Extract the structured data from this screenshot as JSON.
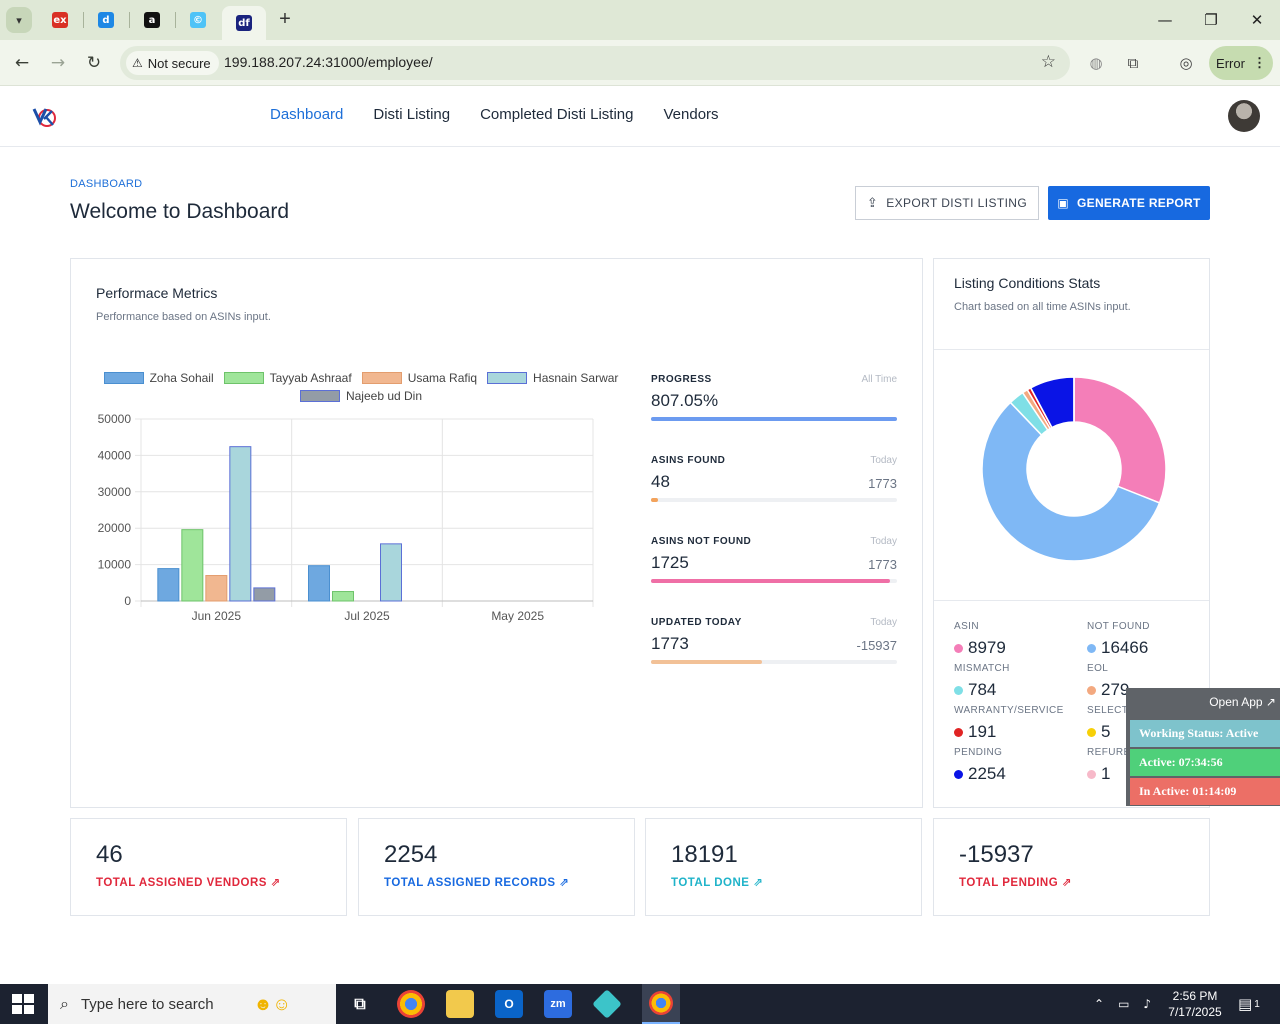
{
  "browser": {
    "tabs": [
      {
        "name": "tab-ex",
        "favicon": "ex",
        "color": "#d93025"
      },
      {
        "name": "tab-blue",
        "favicon": "d",
        "color": "#1e88e5"
      },
      {
        "name": "tab-amazon",
        "favicon": "a",
        "color": "#111111"
      },
      {
        "name": "tab-c",
        "favicon": "©",
        "color": "#4fc3f7"
      },
      {
        "name": "tab-df",
        "favicon": "df",
        "color": "#1a237e"
      }
    ],
    "security_label": "Not secure",
    "url": "199.188.207.24:31000/employee/",
    "error_label": "Error"
  },
  "app": {
    "nav": [
      "Dashboard",
      "Disti Listing",
      "Completed Disti Listing",
      "Vendors"
    ],
    "breadcrumb": "DASHBOARD",
    "title": "Welcome to Dashboard",
    "export_label": "EXPORT DISTI LISTING",
    "generate_label": "GENERATE REPORT"
  },
  "metrics": {
    "title": "Performace Metrics",
    "subtitle": "Performance based on ASINs input.",
    "stats": [
      {
        "label": "PROGRESS",
        "period": "All Time",
        "value": "807.05%",
        "total": "",
        "fill": 1.0,
        "color": "#6c9bf0"
      },
      {
        "label": "ASINS FOUND",
        "period": "Today",
        "value": "48",
        "total": "1773",
        "fill": 0.027,
        "color": "#f3a35c"
      },
      {
        "label": "ASINS NOT FOUND",
        "period": "Today",
        "value": "1725",
        "total": "1773",
        "fill": 0.973,
        "color": "#ef6fa6"
      },
      {
        "label": "UPDATED TODAY",
        "period": "Today",
        "value": "1773",
        "total": "-15937",
        "fill": 0.45,
        "color": "#f2c197"
      }
    ]
  },
  "chart_data": {
    "type": "bar",
    "categories": [
      "Jun 2025",
      "Jul 2025",
      "May 2025"
    ],
    "series": [
      {
        "name": "Zoha Sohail",
        "values": [
          8900,
          9700,
          0
        ],
        "color": "#6ea8e0",
        "border": "#4a8fd0"
      },
      {
        "name": "Tayyab Ashraaf",
        "values": [
          19600,
          2600,
          0
        ],
        "color": "#9fe59a",
        "border": "#6ec36a"
      },
      {
        "name": "Usama Rafiq",
        "values": [
          7000,
          0,
          0
        ],
        "color": "#f1b790",
        "border": "#e39d6e"
      },
      {
        "name": "Hasnain Sarwar",
        "values": [
          42400,
          15700,
          0
        ],
        "color": "#a9d6dc",
        "border": "#5b6fd6"
      },
      {
        "name": "Najeeb ud Din",
        "values": [
          3600,
          0,
          0
        ],
        "color": "#939ca6",
        "border": "#5b6fd6"
      }
    ],
    "ylim": [
      0,
      50000
    ],
    "yticks": [
      "0",
      "10000",
      "20000",
      "30000",
      "40000",
      "50000"
    ],
    "grid": true,
    "legend": "top"
  },
  "listing": {
    "title": "Listing Conditions Stats",
    "subtitle": "Chart based on all time ASINs input.",
    "donut": [
      {
        "label": "ASIN",
        "value": 8979,
        "color": "#f47eb8"
      },
      {
        "label": "NOT FOUND",
        "value": 16466,
        "color": "#7fb8f5"
      },
      {
        "label": "MISMATCH",
        "value": 784,
        "color": "#7fdfe6"
      },
      {
        "label": "EOL",
        "value": 279,
        "color": "#f3a980"
      },
      {
        "label": "WARRANTY/SERVICE",
        "value": 191,
        "color": "#e02424"
      },
      {
        "label": "SELECT REASON",
        "value": 5,
        "color": "#f7d008"
      },
      {
        "label": "PENDING",
        "value": 2254,
        "color": "#0a14e6"
      },
      {
        "label": "REFUREBISHED",
        "value": 1,
        "color": "#f7b9c9"
      }
    ],
    "grid": [
      {
        "key": "ASIN",
        "value": "8979"
      },
      {
        "key": "NOT FOUND",
        "value": "16466"
      },
      {
        "key": "MISMATCH",
        "value": "784"
      },
      {
        "key": "EOL",
        "value": "279"
      },
      {
        "key": "WARRANTY/SERVICE",
        "value": "191"
      },
      {
        "key": "SELECT REASON",
        "value": "5"
      },
      {
        "key": "PENDING",
        "value": "2254"
      },
      {
        "key": "REFURE",
        "value": "1"
      }
    ]
  },
  "kpis": [
    {
      "value": "46",
      "label": "TOTAL ASSIGNED VENDORS",
      "color": "#e0283c"
    },
    {
      "value": "2254",
      "label": "TOTAL ASSIGNED RECORDS",
      "color": "#1769e0"
    },
    {
      "value": "18191",
      "label": "TOTAL DONE",
      "color": "#1fb3c9"
    },
    {
      "value": "-15937",
      "label": "TOTAL PENDING",
      "color": "#e0283c"
    }
  ],
  "overlay": {
    "open_label": "Open App ↗",
    "status": "Working Status: Active",
    "active": "Active: 07:34:56",
    "inactive": "In Active: 01:14:09",
    "colors": {
      "status": "#7ec3cc",
      "active": "#4fd07a",
      "inactive": "#ec6f66"
    }
  },
  "taskbar": {
    "search_placeholder": "Type here to search",
    "time": "2:56 PM",
    "date": "7/17/2025",
    "notification_count": "1"
  }
}
